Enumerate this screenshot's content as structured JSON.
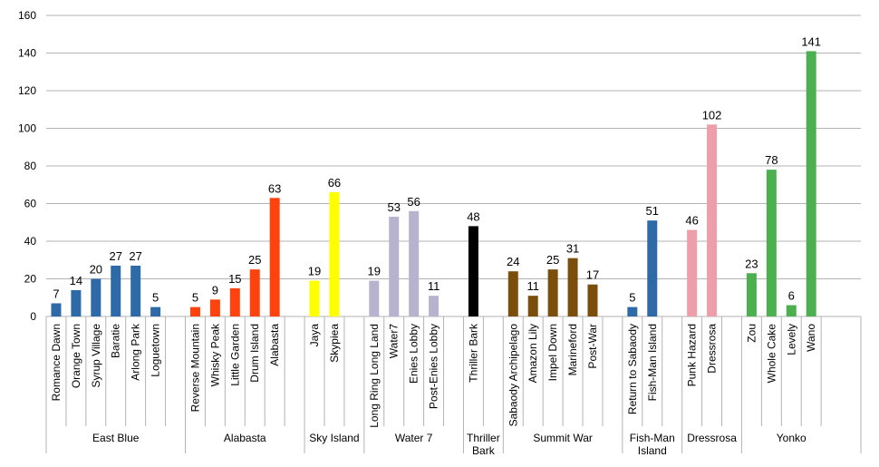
{
  "chart_data": {
    "type": "bar",
    "ylim": [
      0,
      160
    ],
    "yticks": [
      0,
      20,
      40,
      60,
      80,
      100,
      120,
      140,
      160
    ],
    "grid": true,
    "groups": [
      {
        "name": "East Blue",
        "color": "#2f6aa8",
        "label_lines": [
          "East Blue"
        ],
        "bars": [
          {
            "label": "Romance Dawn",
            "value": 7
          },
          {
            "label": "Orange Town",
            "value": 14
          },
          {
            "label": "Syrup Village",
            "value": 20
          },
          {
            "label": "Baratie",
            "value": 27
          },
          {
            "label": "Arlong Park",
            "value": 27
          },
          {
            "label": "Loguetown",
            "value": 5
          }
        ]
      },
      {
        "name": "Alabasta",
        "color": "#ff420e",
        "label_lines": [
          "Alabasta"
        ],
        "bars": [
          {
            "label": "Reverse Mountain",
            "value": 5
          },
          {
            "label": "Whisky Peak",
            "value": 9
          },
          {
            "label": "Little Garden",
            "value": 15
          },
          {
            "label": "Drum Island",
            "value": 25
          },
          {
            "label": "Alabasta",
            "value": 63
          }
        ]
      },
      {
        "name": "Sky Island",
        "color": "#ffff00",
        "label_lines": [
          "Sky Island"
        ],
        "bars": [
          {
            "label": "Jaya",
            "value": 19
          },
          {
            "label": "Skypiea",
            "value": 66
          }
        ]
      },
      {
        "name": "Water 7",
        "color": "#b7b3cf",
        "label_lines": [
          "Water 7"
        ],
        "bars": [
          {
            "label": "Long Ring Long Land",
            "value": 19
          },
          {
            "label": "Water7",
            "value": 53
          },
          {
            "label": "Enies Lobby",
            "value": 56
          },
          {
            "label": "Post-Enies Lobby",
            "value": 11
          }
        ]
      },
      {
        "name": "Thriller Bark",
        "color": "#000000",
        "label_lines": [
          "Thriller",
          "Bark"
        ],
        "bars": [
          {
            "label": "Thriller Bark",
            "value": 48
          }
        ]
      },
      {
        "name": "Summit War",
        "color": "#7b4e0c",
        "label_lines": [
          "Summit War"
        ],
        "bars": [
          {
            "label": "Sabaody Archipelago",
            "value": 24
          },
          {
            "label": "Amazon Lily",
            "value": 11
          },
          {
            "label": "Impel Down",
            "value": 25
          },
          {
            "label": "Marineford",
            "value": 31
          },
          {
            "label": "Post-War",
            "value": 17
          }
        ]
      },
      {
        "name": "Fish-Man Island",
        "color": "#2f6aa8",
        "label_lines": [
          "Fish-Man",
          "Island"
        ],
        "bars": [
          {
            "label": "Return to Sabaody",
            "value": 5
          },
          {
            "label": "Fish-Man Island",
            "value": 51
          }
        ]
      },
      {
        "name": "Dressrosa",
        "color": "#ee9ea8",
        "label_lines": [
          "Dressrosa"
        ],
        "bars": [
          {
            "label": "Punk Hazard",
            "value": 46
          },
          {
            "label": "Dressrosa",
            "value": 102
          }
        ]
      },
      {
        "name": "Yonko",
        "color": "#4caf50",
        "label_lines": [
          "Yonko"
        ],
        "bars": [
          {
            "label": "Zou",
            "value": 23
          },
          {
            "label": "Whole Cake",
            "value": 78
          },
          {
            "label": "Levely",
            "value": 6
          },
          {
            "label": "Wano",
            "value": 141
          }
        ]
      }
    ]
  }
}
